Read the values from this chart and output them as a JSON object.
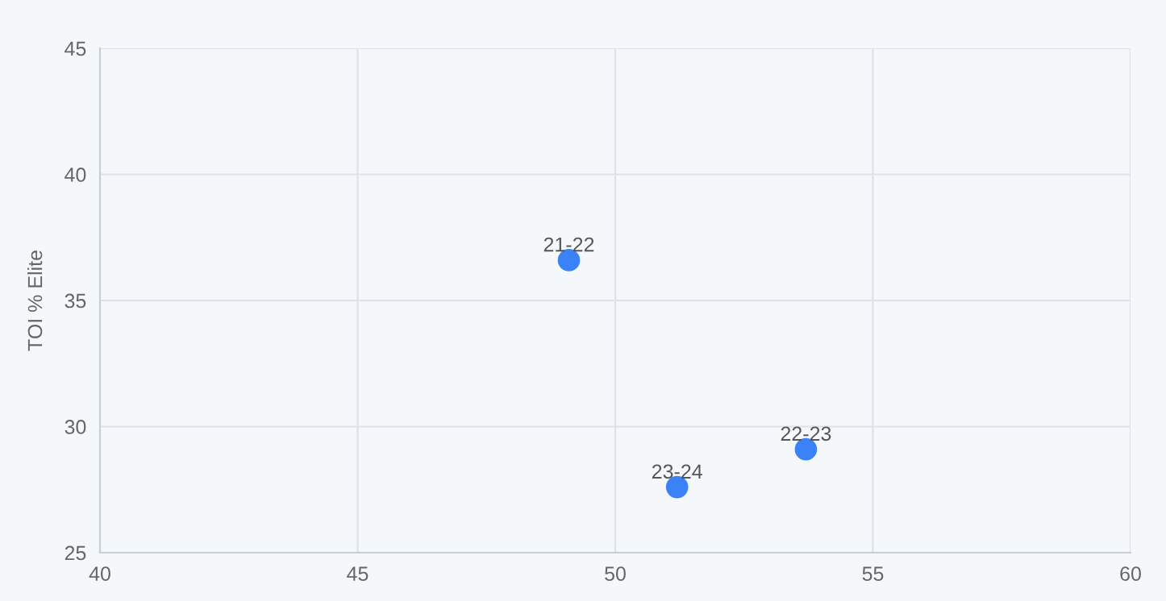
{
  "chart_data": {
    "type": "scatter",
    "ylabel": "TOI % Elite",
    "x": [
      49.1,
      53.7,
      51.2
    ],
    "values": [
      36.6,
      29.1,
      27.6
    ],
    "color": "#3b82f6",
    "annotations": [
      {
        "text": "21-22",
        "x": 49.1,
        "y": 36.6
      },
      {
        "text": "22-23",
        "x": 53.7,
        "y": 29.1
      },
      {
        "text": "23-24",
        "x": 51.2,
        "y": 27.6
      }
    ],
    "xlim": [
      40,
      60
    ],
    "xticks": [
      40,
      45,
      50,
      55,
      60
    ],
    "ylim": [
      25,
      45
    ],
    "yticks": [
      25,
      30,
      35,
      40,
      45
    ],
    "grid": true,
    "marker": "circle"
  }
}
